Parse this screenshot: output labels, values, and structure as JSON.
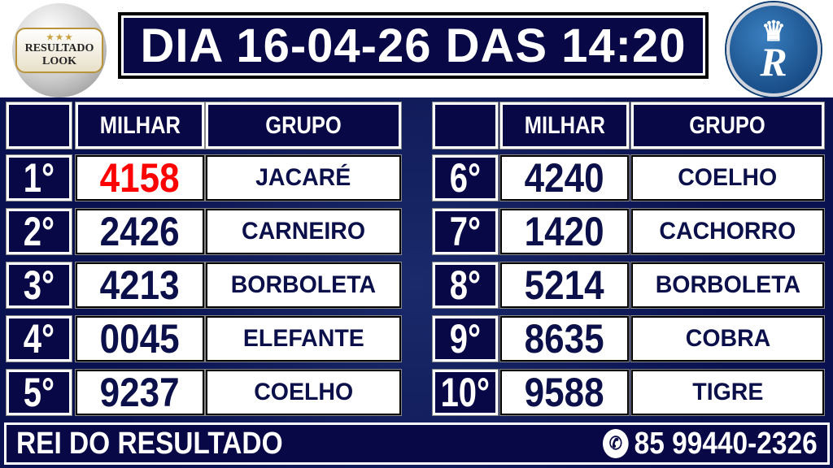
{
  "header": {
    "title": "DIA 16-04-26 DAS 14:20"
  },
  "logo_left": {
    "text": "RESULTADO LOOK",
    "line1": "RESULTADO",
    "line2": "LOOK"
  },
  "logo_right": {
    "text": "Rei R"
  },
  "columns": {
    "milhar": "MILHAR",
    "grupo": "GRUPO"
  },
  "colors": {
    "navy": "#070845",
    "highlight": "#ff0000"
  },
  "results": [
    {
      "pos": "1°",
      "milhar": "4158",
      "grupo": "JACARÉ",
      "highlight": true
    },
    {
      "pos": "2°",
      "milhar": "2426",
      "grupo": "CARNEIRO"
    },
    {
      "pos": "3°",
      "milhar": "4213",
      "grupo": "BORBOLETA"
    },
    {
      "pos": "4°",
      "milhar": "0045",
      "grupo": "ELEFANTE"
    },
    {
      "pos": "5°",
      "milhar": "9237",
      "grupo": "COELHO"
    },
    {
      "pos": "6°",
      "milhar": "4240",
      "grupo": "COELHO"
    },
    {
      "pos": "7°",
      "milhar": "1420",
      "grupo": "CACHORRO"
    },
    {
      "pos": "8°",
      "milhar": "5214",
      "grupo": "BORBOLETA"
    },
    {
      "pos": "9°",
      "milhar": "8635",
      "grupo": "COBRA"
    },
    {
      "pos": "10°",
      "milhar": "9588",
      "grupo": "TIGRE"
    }
  ],
  "footer": {
    "brand": "REI DO RESULTADO",
    "phone": "85 99440-2326",
    "phone_icon": "whatsapp-icon"
  }
}
